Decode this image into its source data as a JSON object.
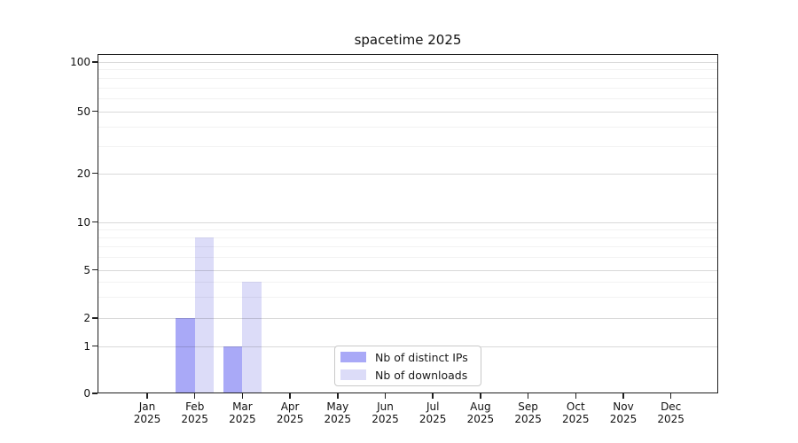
{
  "window": {
    "background": "#ffffff"
  },
  "chart_data": {
    "type": "bar",
    "title": "spacetime 2025",
    "xlabel": "",
    "ylabel": "",
    "x_months": [
      "Jan",
      "Feb",
      "Mar",
      "Apr",
      "May",
      "Jun",
      "Jul",
      "Aug",
      "Sep",
      "Oct",
      "Nov",
      "Dec"
    ],
    "x_year": "2025",
    "y_ticks": [
      0,
      1,
      2,
      5,
      10,
      20,
      50,
      100
    ],
    "y_minor_gridlines": [
      3,
      4,
      6,
      7,
      8,
      9,
      30,
      40,
      60,
      70,
      80,
      90
    ],
    "ylim": [
      0,
      110
    ],
    "scale": "log-like (0,1,2,5,10,20,50,100)",
    "grid": "horizontal major + minor",
    "legend_position": "lower center inside plot",
    "series": [
      {
        "name": "Nb of distinct IPs",
        "color": "#a9a9f7",
        "values": [
          0,
          2,
          1,
          0,
          0,
          0,
          0,
          0,
          0,
          0,
          0,
          0
        ]
      },
      {
        "name": "Nb of downloads",
        "color": "#dcdcf8",
        "values": [
          0,
          8,
          4,
          0,
          0,
          0,
          0,
          0,
          0,
          0,
          0,
          0
        ]
      }
    ]
  },
  "colors": {
    "major_grid": "#d9d9d9",
    "minor_grid": "#f2f2f2",
    "spine": "#1f1f1f",
    "text": "#111111"
  }
}
